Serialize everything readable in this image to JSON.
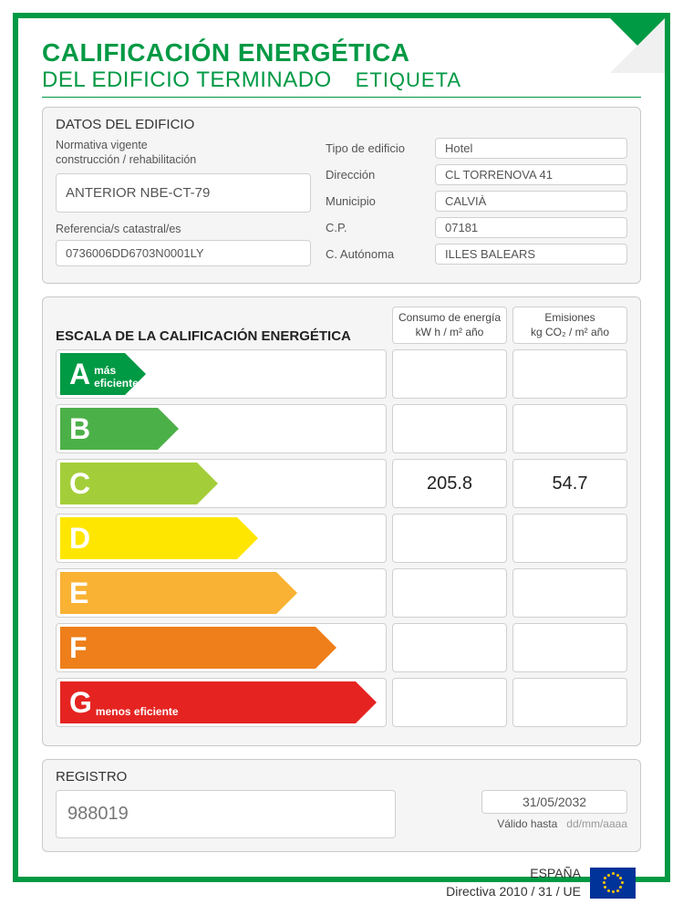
{
  "header": {
    "title1": "CALIFICACIÓN ENERGÉTICA",
    "title2": "DEL EDIFICIO TERMINADO",
    "etiqueta": "ETIQUETA"
  },
  "colors": {
    "brand_green": "#009944",
    "panel_bg": "#f5f5f5",
    "panel_border": "#c9c9c9",
    "field_bg": "#ffffff",
    "field_border": "#d0d0d0",
    "text_muted": "#555555",
    "eu_blue": "#003399",
    "eu_gold": "#ffcc00"
  },
  "datos": {
    "section_title": "DATOS DEL EDIFICIO",
    "normativa_label": "Normativa vigente",
    "normativa_sub": "construcción / rehabilitación",
    "normativa_value": "ANTERIOR NBE-CT-79",
    "referencia_label": "Referencia/s catastral/es",
    "referencia_value": "0736006DD6703N0001LY",
    "rows": [
      {
        "label": "Tipo de edificio",
        "value": "Hotel"
      },
      {
        "label": "Dirección",
        "value": "CL TORRENOVA 41"
      },
      {
        "label": "Municipio",
        "value": "CALVIÀ"
      },
      {
        "label": "C.P.",
        "value": "07181"
      },
      {
        "label": "C. Autónoma",
        "value": "ILLES BALEARS"
      }
    ]
  },
  "escala": {
    "title": "ESCALA DE LA CALIFICACIÓN ENERGÉTICA",
    "col1_line1": "Consumo de energía",
    "col1_line2": "kW h  / m² año",
    "col2_line1": "Emisiones",
    "col2_line2": "kg CO₂  / m² año",
    "mas_eficiente": "más eficiente",
    "menos_eficiente": "menos eficiente",
    "rows": [
      {
        "letter": "A",
        "color": "#009944",
        "width_pct": 26,
        "consumo": "",
        "emisiones": ""
      },
      {
        "letter": "B",
        "color": "#4cb048",
        "width_pct": 36,
        "consumo": "",
        "emisiones": ""
      },
      {
        "letter": "C",
        "color": "#a4ce39",
        "width_pct": 48,
        "consumo": "205.8",
        "emisiones": "54.7"
      },
      {
        "letter": "D",
        "color": "#ffe600",
        "width_pct": 60,
        "consumo": "",
        "emisiones": ""
      },
      {
        "letter": "E",
        "color": "#f9b233",
        "width_pct": 72,
        "consumo": "",
        "emisiones": ""
      },
      {
        "letter": "F",
        "color": "#ee7f1a",
        "width_pct": 84,
        "consumo": "",
        "emisiones": ""
      },
      {
        "letter": "G",
        "color": "#e52421",
        "width_pct": 96,
        "consumo": "",
        "emisiones": ""
      }
    ]
  },
  "registro": {
    "section_title": "REGISTRO",
    "numero": "988019",
    "fecha": "31/05/2032",
    "valido_label": "Válido hasta",
    "valido_format": "dd/mm/aaaa"
  },
  "footer": {
    "country": "ESPAÑA",
    "directive": "Directiva 2010 / 31 / UE"
  }
}
